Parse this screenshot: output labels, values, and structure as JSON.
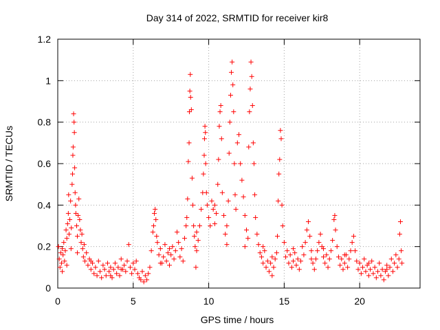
{
  "chart_data": {
    "type": "scatter",
    "title": "Day 314 of 2022, SRMTID for receiver kir8",
    "xlabel": "GPS time / hours",
    "ylabel": "SRMTID / TECUs",
    "xlim": [
      0,
      24
    ],
    "ylim": [
      0,
      1.2
    ],
    "xticks": [
      0,
      5,
      10,
      15,
      20
    ],
    "yticks": [
      0,
      0.2,
      0.4,
      0.6,
      0.8,
      1,
      1.2
    ],
    "xtick_labels": [
      "0",
      "5",
      "10",
      "15",
      "20"
    ],
    "ytick_labels": [
      "0",
      "0.2",
      "0.4",
      "0.6",
      "0.8",
      "1",
      "1.2"
    ],
    "grid": true,
    "marker": "+",
    "series": [
      {
        "name": "SRMTID",
        "color": "#ff0000",
        "points": [
          [
            0.05,
            0.2
          ],
          [
            0.1,
            0.14
          ],
          [
            0.15,
            0.1
          ],
          [
            0.2,
            0.17
          ],
          [
            0.25,
            0.12
          ],
          [
            0.3,
            0.08
          ],
          [
            0.35,
            0.16
          ],
          [
            0.4,
            0.22
          ],
          [
            0.45,
            0.13
          ],
          [
            0.5,
            0.18
          ],
          [
            0.55,
            0.28
          ],
          [
            0.6,
            0.24
          ],
          [
            0.65,
            0.31
          ],
          [
            0.7,
            0.36
          ],
          [
            0.72,
            0.45
          ],
          [
            0.75,
            0.26
          ],
          [
            0.8,
            0.33
          ],
          [
            0.85,
            0.42
          ],
          [
            0.88,
            0.19
          ],
          [
            0.9,
            0.29
          ],
          [
            0.95,
            0.5
          ],
          [
            0.98,
            0.55
          ],
          [
            1.0,
            0.64
          ],
          [
            1.02,
            0.68
          ],
          [
            1.05,
            0.84
          ],
          [
            1.08,
            0.8
          ],
          [
            1.1,
            0.75
          ],
          [
            1.12,
            0.58
          ],
          [
            1.15,
            0.46
          ],
          [
            1.18,
            0.4
          ],
          [
            1.2,
            0.36
          ],
          [
            1.25,
            0.3
          ],
          [
            1.3,
            0.25
          ],
          [
            1.35,
            0.35
          ],
          [
            1.4,
            0.43
          ],
          [
            1.45,
            0.33
          ],
          [
            1.5,
            0.28
          ],
          [
            1.55,
            0.22
          ],
          [
            1.6,
            0.26
          ],
          [
            1.65,
            0.19
          ],
          [
            1.7,
            0.15
          ],
          [
            1.75,
            0.21
          ],
          [
            1.8,
            0.13
          ],
          [
            1.9,
            0.17
          ],
          [
            2.0,
            0.11
          ],
          [
            2.1,
            0.14
          ],
          [
            2.2,
            0.09
          ],
          [
            2.3,
            0.12
          ],
          [
            2.4,
            0.07
          ],
          [
            2.5,
            0.1
          ],
          [
            2.6,
            0.06
          ],
          [
            2.7,
            0.13
          ],
          [
            2.8,
            0.08
          ],
          [
            2.9,
            0.05
          ],
          [
            3.0,
            0.11
          ],
          [
            3.1,
            0.09
          ],
          [
            3.2,
            0.06
          ],
          [
            3.3,
            0.12
          ],
          [
            3.4,
            0.08
          ],
          [
            3.5,
            0.1
          ],
          [
            3.6,
            0.05
          ],
          [
            3.7,
            0.09
          ],
          [
            3.8,
            0.12
          ],
          [
            3.9,
            0.07
          ],
          [
            4.0,
            0.1
          ],
          [
            4.1,
            0.06
          ],
          [
            4.2,
            0.14
          ],
          [
            4.3,
            0.09
          ],
          [
            4.4,
            0.11
          ],
          [
            4.5,
            0.08
          ],
          [
            4.6,
            0.13
          ],
          [
            4.7,
            0.21
          ],
          [
            4.8,
            0.1
          ],
          [
            4.9,
            0.07
          ],
          [
            5.0,
            0.12
          ],
          [
            5.1,
            0.09
          ],
          [
            5.2,
            0.13
          ],
          [
            5.3,
            0.07
          ],
          [
            5.4,
            0.05
          ],
          [
            5.5,
            0.04
          ],
          [
            5.6,
            0.08
          ],
          [
            5.7,
            0.03
          ],
          [
            5.8,
            0.06
          ],
          [
            5.9,
            0.04
          ],
          [
            6.0,
            0.07
          ],
          [
            6.1,
            0.1
          ],
          [
            6.2,
            0.18
          ],
          [
            6.3,
            0.27
          ],
          [
            6.35,
            0.3
          ],
          [
            6.4,
            0.36
          ],
          [
            6.45,
            0.38
          ],
          [
            6.5,
            0.33
          ],
          [
            6.55,
            0.25
          ],
          [
            6.6,
            0.22
          ],
          [
            6.7,
            0.16
          ],
          [
            6.8,
            0.19
          ],
          [
            6.9,
            0.12
          ],
          [
            7.0,
            0.15
          ],
          [
            7.1,
            0.21
          ],
          [
            7.2,
            0.13
          ],
          [
            7.3,
            0.17
          ],
          [
            7.4,
            0.11
          ],
          [
            7.5,
            0.16
          ],
          [
            7.6,
            0.2
          ],
          [
            7.7,
            0.14
          ],
          [
            7.8,
            0.18
          ],
          [
            7.9,
            0.27
          ],
          [
            8.0,
            0.22
          ],
          [
            8.1,
            0.15
          ],
          [
            8.2,
            0.19
          ],
          [
            8.3,
            0.13
          ],
          [
            8.4,
            0.24
          ],
          [
            8.5,
            0.3
          ],
          [
            8.55,
            0.34
          ],
          [
            8.6,
            0.43
          ],
          [
            8.65,
            0.61
          ],
          [
            8.7,
            0.7
          ],
          [
            8.72,
            0.85
          ],
          [
            8.75,
            0.95
          ],
          [
            8.78,
            1.03
          ],
          [
            8.8,
            0.92
          ],
          [
            8.85,
            0.86
          ],
          [
            8.9,
            0.53
          ],
          [
            8.95,
            0.4
          ],
          [
            9.0,
            0.3
          ],
          [
            9.05,
            0.25
          ],
          [
            9.1,
            0.2
          ],
          [
            9.15,
            0.1
          ],
          [
            9.2,
            0.18
          ],
          [
            9.3,
            0.23
          ],
          [
            9.4,
            0.3
          ],
          [
            9.5,
            0.38
          ],
          [
            9.6,
            0.46
          ],
          [
            9.65,
            0.55
          ],
          [
            9.7,
            0.64
          ],
          [
            9.72,
            0.72
          ],
          [
            9.75,
            0.78
          ],
          [
            9.78,
            0.75
          ],
          [
            9.8,
            0.6
          ],
          [
            9.85,
            0.46
          ],
          [
            9.9,
            0.4
          ],
          [
            10.0,
            0.34
          ],
          [
            10.1,
            0.3
          ],
          [
            10.2,
            0.42
          ],
          [
            10.3,
            0.38
          ],
          [
            10.4,
            0.31
          ],
          [
            10.5,
            0.36
          ],
          [
            10.6,
            0.5
          ],
          [
            10.65,
            0.62
          ],
          [
            10.7,
            0.78
          ],
          [
            10.75,
            0.85
          ],
          [
            10.8,
            0.88
          ],
          [
            10.85,
            0.72
          ],
          [
            10.9,
            0.46
          ],
          [
            11.0,
            0.35
          ],
          [
            11.1,
            0.26
          ],
          [
            11.2,
            0.21
          ],
          [
            11.3,
            0.42
          ],
          [
            11.35,
            0.65
          ],
          [
            11.4,
            0.8
          ],
          [
            11.45,
            0.93
          ],
          [
            11.5,
            1.04
          ],
          [
            11.55,
            1.09
          ],
          [
            11.6,
            0.98
          ],
          [
            11.65,
            0.85
          ],
          [
            11.7,
            0.6
          ],
          [
            11.75,
            0.45
          ],
          [
            11.8,
            0.38
          ],
          [
            11.9,
            0.7
          ],
          [
            12.0,
            0.74
          ],
          [
            12.1,
            0.6
          ],
          [
            12.2,
            0.52
          ],
          [
            12.3,
            0.44
          ],
          [
            12.4,
            0.35
          ],
          [
            12.5,
            0.28
          ],
          [
            12.6,
            0.24
          ],
          [
            12.65,
            0.68
          ],
          [
            12.7,
            0.85
          ],
          [
            12.75,
            0.96
          ],
          [
            12.8,
            1.09
          ],
          [
            12.85,
            1.02
          ],
          [
            12.9,
            0.88
          ],
          [
            12.95,
            0.7
          ],
          [
            13.0,
            0.6
          ],
          [
            13.05,
            0.45
          ],
          [
            13.1,
            0.34
          ],
          [
            13.2,
            0.26
          ],
          [
            13.3,
            0.21
          ],
          [
            13.4,
            0.17
          ],
          [
            13.5,
            0.15
          ],
          [
            13.6,
            0.12
          ],
          [
            13.7,
            0.18
          ],
          [
            13.8,
            0.1
          ],
          [
            13.9,
            0.13
          ],
          [
            14.0,
            0.08
          ],
          [
            14.1,
            0.12
          ],
          [
            14.2,
            0.06
          ],
          [
            14.3,
            0.1
          ],
          [
            14.4,
            0.14
          ],
          [
            14.5,
            0.17
          ],
          [
            14.55,
            0.25
          ],
          [
            14.6,
            0.42
          ],
          [
            14.65,
            0.55
          ],
          [
            14.7,
            0.62
          ],
          [
            14.75,
            0.76
          ],
          [
            14.8,
            0.72
          ],
          [
            14.85,
            0.4
          ],
          [
            14.9,
            0.3
          ],
          [
            15.0,
            0.22
          ],
          [
            15.1,
            0.15
          ],
          [
            15.2,
            0.18
          ],
          [
            15.3,
            0.12
          ],
          [
            15.4,
            0.16
          ],
          [
            15.5,
            0.1
          ],
          [
            15.6,
            0.13
          ],
          [
            15.7,
            0.17
          ],
          [
            15.8,
            0.11
          ],
          [
            15.9,
            0.14
          ],
          [
            16.0,
            0.09
          ],
          [
            16.1,
            0.13
          ],
          [
            16.2,
            0.2
          ],
          [
            16.3,
            0.16
          ],
          [
            16.4,
            0.22
          ],
          [
            16.5,
            0.28
          ],
          [
            16.6,
            0.32
          ],
          [
            16.7,
            0.25
          ],
          [
            16.8,
            0.18
          ],
          [
            16.9,
            0.12
          ],
          [
            17.0,
            0.09
          ],
          [
            17.1,
            0.14
          ],
          [
            17.2,
            0.18
          ],
          [
            17.3,
            0.22
          ],
          [
            17.4,
            0.26
          ],
          [
            17.5,
            0.2
          ],
          [
            17.6,
            0.15
          ],
          [
            17.7,
            0.12
          ],
          [
            17.8,
            0.16
          ],
          [
            17.9,
            0.1
          ],
          [
            18.0,
            0.14
          ],
          [
            18.1,
            0.18
          ],
          [
            18.2,
            0.23
          ],
          [
            18.3,
            0.33
          ],
          [
            18.35,
            0.35
          ],
          [
            18.4,
            0.28
          ],
          [
            18.5,
            0.2
          ],
          [
            18.6,
            0.15
          ],
          [
            18.7,
            0.11
          ],
          [
            18.8,
            0.14
          ],
          [
            18.9,
            0.09
          ],
          [
            19.0,
            0.12
          ],
          [
            19.1,
            0.16
          ],
          [
            19.2,
            0.1
          ],
          [
            19.3,
            0.14
          ],
          [
            19.4,
            0.18
          ],
          [
            19.5,
            0.22
          ],
          [
            19.6,
            0.25
          ],
          [
            19.7,
            0.18
          ],
          [
            19.8,
            0.13
          ],
          [
            19.9,
            0.09
          ],
          [
            20.0,
            0.12
          ],
          [
            20.1,
            0.07
          ],
          [
            20.2,
            0.1
          ],
          [
            20.3,
            0.14
          ],
          [
            20.4,
            0.08
          ],
          [
            20.5,
            0.11
          ],
          [
            20.6,
            0.06
          ],
          [
            20.7,
            0.09
          ],
          [
            20.8,
            0.13
          ],
          [
            20.9,
            0.07
          ],
          [
            21.0,
            0.1
          ],
          [
            21.1,
            0.05
          ],
          [
            21.2,
            0.08
          ],
          [
            21.3,
            0.12
          ],
          [
            21.4,
            0.06
          ],
          [
            21.5,
            0.09
          ],
          [
            21.6,
            0.04
          ],
          [
            21.7,
            0.08
          ],
          [
            21.8,
            0.11
          ],
          [
            21.9,
            0.06
          ],
          [
            22.0,
            0.1
          ],
          [
            22.1,
            0.14
          ],
          [
            22.2,
            0.08
          ],
          [
            22.3,
            0.12
          ],
          [
            22.4,
            0.16
          ],
          [
            22.5,
            0.1
          ],
          [
            22.6,
            0.14
          ],
          [
            22.65,
            0.26
          ],
          [
            22.7,
            0.32
          ],
          [
            22.75,
            0.18
          ],
          [
            22.8,
            0.12
          ],
          [
            0.3,
            0.19
          ],
          [
            0.6,
            0.11
          ],
          [
            1.3,
            0.17
          ],
          [
            2.2,
            0.13
          ],
          [
            3.5,
            0.06
          ],
          [
            4.2,
            0.09
          ],
          [
            6.8,
            0.12
          ],
          [
            7.4,
            0.19
          ],
          [
            9.2,
            0.27
          ],
          [
            10.4,
            0.4
          ],
          [
            11.2,
            0.3
          ],
          [
            12.4,
            0.2
          ],
          [
            13.6,
            0.2
          ],
          [
            14.2,
            0.15
          ],
          [
            15.6,
            0.19
          ],
          [
            16.8,
            0.14
          ],
          [
            17.6,
            0.19
          ],
          [
            19.0,
            0.16
          ],
          [
            20.6,
            0.12
          ],
          [
            21.8,
            0.09
          ]
        ]
      }
    ]
  }
}
